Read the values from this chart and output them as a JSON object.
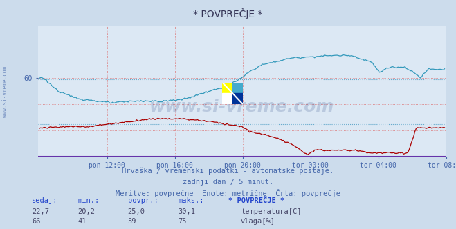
{
  "title": "* POVPREČJE *",
  "background_color": "#ccdcec",
  "plot_bg_color": "#dce8f4",
  "temp_color": "#aa0000",
  "humid_color": "#3399bb",
  "axis_bottom_color": "#6633aa",
  "arrow_color": "#cc0000",
  "text_color": "#4466aa",
  "grid_v_color": "#dd6666",
  "grid_h_color": "#dd6666",
  "ref_line_color": "#66aacc",
  "xlabel_ticks": [
    "pon 12:00",
    "pon 16:00",
    "pon 20:00",
    "tor 00:00",
    "tor 04:00",
    "tor 08:00"
  ],
  "subtitle1": "Hrvaška / vremenski podatki - avtomatske postaje.",
  "subtitle2": "zadnji dan / 5 minut.",
  "subtitle3": "Meritve: povprečne  Enote: metrične  Črta: povprečje",
  "stat_headers": [
    "sedaj:",
    "min.:",
    "povpr.:",
    "maks.:",
    "* POVPREČJE *"
  ],
  "temp_stats": [
    "22,7",
    "20,2",
    "25,0",
    "30,1"
  ],
  "humid_stats": [
    "66",
    "41",
    "59",
    "75"
  ],
  "temp_label": "temperatura[C]",
  "humid_label": "vlaga[%]",
  "ylim": [
    0,
    100
  ],
  "ytick_vals": [
    60
  ],
  "temp_ref": 25,
  "humid_ref": 59,
  "watermark": "www.si-vreme.com",
  "watermark_color": "#1a3a7a",
  "watermark_alpha": 0.18,
  "n_points": 288,
  "logo_colors": {
    "top_left": "#ffff00",
    "top_right": "#44aacc",
    "bottom_left": "#ffffff",
    "bottom_right": "#003399"
  }
}
